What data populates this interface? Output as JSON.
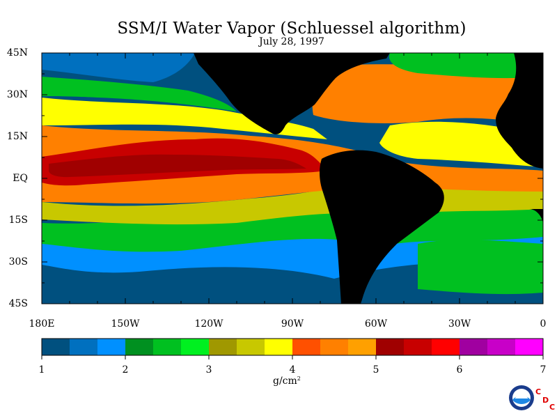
{
  "title": "SSM/I Water Vapor (Schluessel algorithm)",
  "subtitle": "July 28, 1997",
  "lat_labels": [
    "45N",
    "30N",
    "15N",
    "EQ",
    "15S",
    "30S",
    "45S"
  ],
  "lon_labels": [
    "180E",
    "150W",
    "120W",
    "90W",
    "60W",
    "30W",
    "0"
  ],
  "colorbar": {
    "min": 1,
    "max": 7,
    "tick_labels": [
      "1",
      "2",
      "3",
      "4",
      "5",
      "6",
      "7"
    ],
    "units": "g/cm",
    "units_power": "2",
    "colors": [
      "#00507f",
      "#0070bf",
      "#0090ff",
      "#009020",
      "#00c020",
      "#00f020",
      "#a09800",
      "#c8c800",
      "#ffff00",
      "#ff5000",
      "#ff8000",
      "#ffa000",
      "#a00000",
      "#c80000",
      "#ff0000",
      "#a000a0",
      "#c800c8",
      "#ff00ff"
    ]
  },
  "logo": {
    "text": "NOAA",
    "badge": [
      "C",
      "D",
      "C"
    ]
  },
  "colors": {
    "land": "#000000",
    "frame": "#000000"
  }
}
